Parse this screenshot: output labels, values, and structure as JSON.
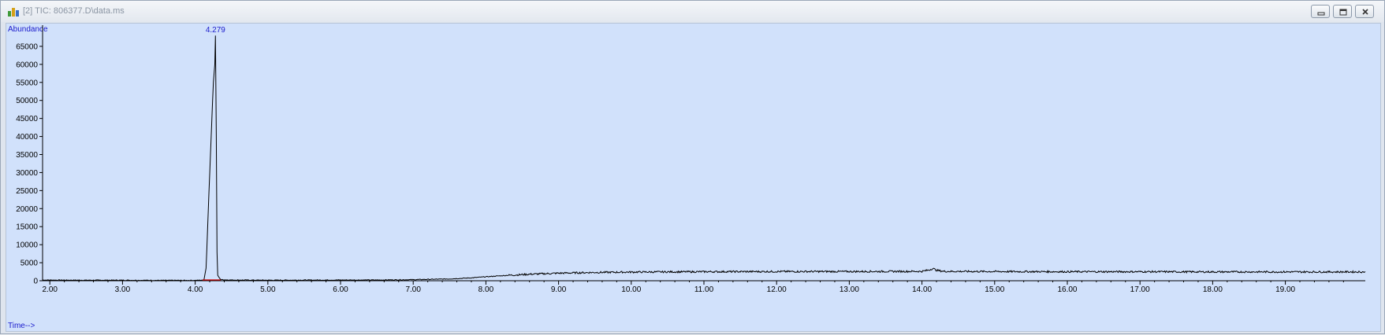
{
  "window": {
    "title": "[2] TIC: 806377.D\\data.ms",
    "icon": "chromatogram-app-icon",
    "buttons": [
      "minimize-icon",
      "restore-icon",
      "close-icon"
    ]
  },
  "colors": {
    "plot_background": "#d1e1fb",
    "trace": "#000000",
    "axis_labels": "#1a1acc",
    "peak_label": "#1a1acc",
    "integration_marker": "#cc0000"
  },
  "chart_data": {
    "type": "line",
    "ylabel": "Abundance",
    "xlabel": "Time-->",
    "xlim": [
      1.9,
      20.1
    ],
    "ylim": [
      0,
      70000
    ],
    "x_ticks": [
      "2.00",
      "3.00",
      "4.00",
      "5.00",
      "6.00",
      "7.00",
      "8.00",
      "9.00",
      "10.00",
      "11.00",
      "12.00",
      "13.00",
      "14.00",
      "15.00",
      "16.00",
      "17.00",
      "18.00",
      "19.00"
    ],
    "y_ticks": [
      "0",
      "5000",
      "10000",
      "15000",
      "20000",
      "25000",
      "30000",
      "35000",
      "40000",
      "45000",
      "50000",
      "55000",
      "60000",
      "65000"
    ],
    "peak_labels": [
      {
        "x": 4.279,
        "label": "4.279"
      }
    ],
    "series": [
      {
        "x": [
          1.9,
          2.5,
          3.0,
          3.5,
          4.0,
          4.12,
          4.15,
          4.2,
          4.25,
          4.27,
          4.279,
          4.29,
          4.3,
          4.31,
          4.35,
          4.5,
          5.0,
          6.0,
          6.5,
          7.0,
          7.5,
          7.8,
          8.0,
          8.3,
          8.6,
          9.0,
          9.5,
          10.0,
          11.0,
          12.0,
          13.0,
          14.0,
          14.1,
          14.15,
          14.2,
          14.3,
          15.0,
          16.0,
          17.0,
          18.0,
          19.0,
          20.0
        ],
        "y": [
          200,
          150,
          150,
          100,
          100,
          200,
          3500,
          30000,
          55000,
          60000,
          68000,
          40000,
          8000,
          1500,
          300,
          200,
          150,
          200,
          200,
          300,
          500,
          800,
          1100,
          1500,
          1800,
          2100,
          2300,
          2400,
          2500,
          2550,
          2550,
          2600,
          3000,
          3400,
          2900,
          2600,
          2550,
          2500,
          2500,
          2450,
          2450,
          2450
        ]
      }
    ],
    "integration_baseline": {
      "x_start": 4.1,
      "x_end": 4.35
    }
  }
}
